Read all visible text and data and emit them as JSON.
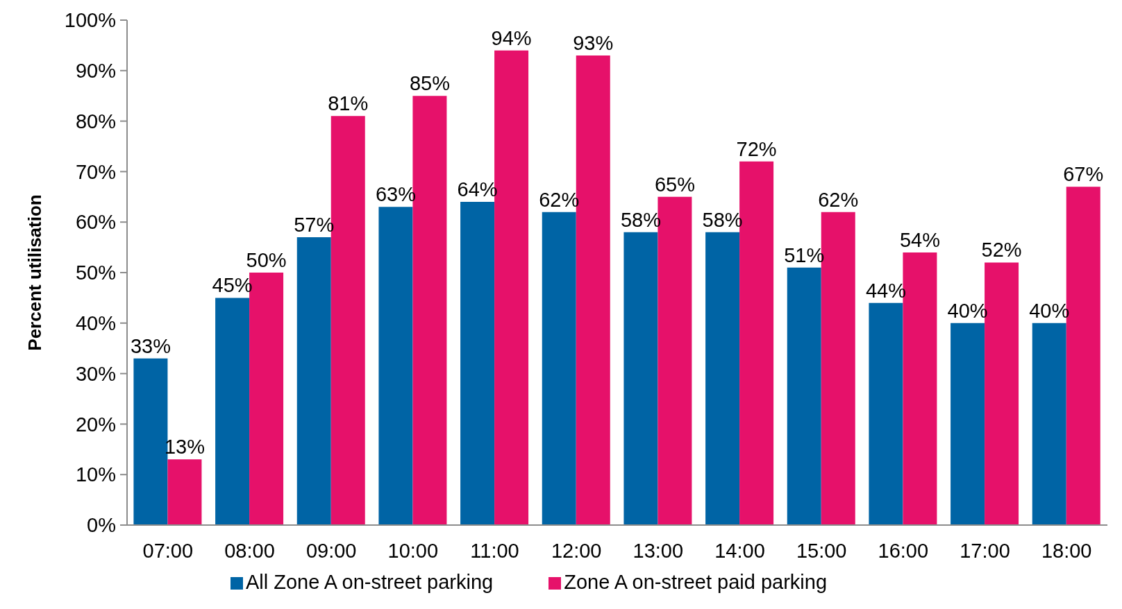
{
  "chart_data": {
    "type": "bar",
    "ylabel": "Percent utilisation",
    "categories": [
      "07:00",
      "08:00",
      "09:00",
      "10:00",
      "11:00",
      "12:00",
      "13:00",
      "14:00",
      "15:00",
      "16:00",
      "17:00",
      "18:00"
    ],
    "series": [
      {
        "name": "All Zone A on-street parking",
        "color": "#0064a5",
        "values": [
          33,
          45,
          57,
          63,
          64,
          62,
          58,
          58,
          51,
          44,
          40,
          40
        ],
        "value_labels": [
          "33%",
          "45%",
          "57%",
          "63%",
          "64%",
          "62%",
          "58%",
          "58%",
          "51%",
          "44%",
          "40%",
          "40%"
        ]
      },
      {
        "name": "Zone A on-street paid parking",
        "color": "#e6116a",
        "values": [
          13,
          50,
          81,
          85,
          94,
          93,
          65,
          72,
          62,
          54,
          52,
          67
        ],
        "value_labels": [
          "13%",
          "50%",
          "81%",
          "85%",
          "94%",
          "93%",
          "65%",
          "72%",
          "62%",
          "54%",
          "52%",
          "67%"
        ]
      }
    ],
    "ylim": [
      0,
      100
    ],
    "yticks": [
      {
        "value": 0,
        "label": "0%"
      },
      {
        "value": 10,
        "label": "10%"
      },
      {
        "value": 20,
        "label": "20%"
      },
      {
        "value": 30,
        "label": "30%"
      },
      {
        "value": 40,
        "label": "40%"
      },
      {
        "value": 50,
        "label": "50%"
      },
      {
        "value": 60,
        "label": "60%"
      },
      {
        "value": 70,
        "label": "70%"
      },
      {
        "value": 80,
        "label": "80%"
      },
      {
        "value": 90,
        "label": "90%"
      },
      {
        "value": 100,
        "label": "100%"
      }
    ],
    "legend": "bottom"
  }
}
